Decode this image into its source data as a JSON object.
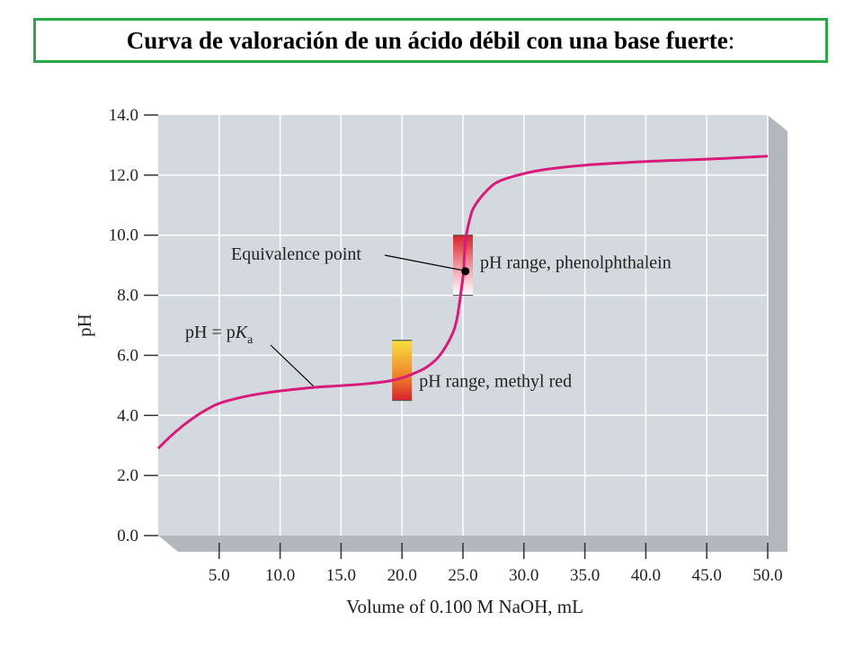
{
  "header": {
    "title": "Curva de valoración de un ácido débil con una base fuerte",
    "title_suffix": ":"
  },
  "chart_data": {
    "type": "line",
    "title": "",
    "xlabel": "Volume of 0.100 M NaOH, mL",
    "ylabel": "pH",
    "xlim": [
      0,
      50
    ],
    "ylim": [
      0,
      14
    ],
    "grid": true,
    "x_ticks": [
      "5.0",
      "10.0",
      "15.0",
      "20.0",
      "25.0",
      "30.0",
      "35.0",
      "40.0",
      "45.0",
      "50.0"
    ],
    "y_ticks": [
      "0.0",
      "2.0",
      "4.0",
      "6.0",
      "8.0",
      "10.0",
      "12.0",
      "14.0"
    ],
    "series": [
      {
        "color": "#d81b7a",
        "x": [
          0,
          1,
          2,
          3,
          4,
          5,
          7,
          9,
          11,
          13,
          15,
          17,
          19,
          20,
          21,
          22,
          23,
          24,
          24.5,
          24.9,
          25.05,
          25.2,
          25.6,
          26,
          27,
          28,
          30,
          32,
          35,
          40,
          45,
          50
        ],
        "y": [
          2.9,
          3.3,
          3.65,
          3.95,
          4.2,
          4.4,
          4.62,
          4.76,
          4.86,
          4.94,
          4.99,
          5.05,
          5.15,
          5.25,
          5.4,
          5.6,
          5.95,
          6.6,
          7.2,
          8.3,
          8.8,
          9.8,
          10.6,
          11.0,
          11.5,
          11.8,
          12.05,
          12.2,
          12.33,
          12.45,
          12.53,
          12.63
        ]
      }
    ],
    "indicator_bars": [
      {
        "label": "pH range, methyl red",
        "x": 20.0,
        "y_range": [
          4.5,
          6.5
        ],
        "colors": [
          "#d8232a",
          "#f08a2c",
          "#f8e040"
        ]
      },
      {
        "label": "pH range, phenolphthalein",
        "x": 25.0,
        "y_range": [
          8.0,
          10.0
        ],
        "colors": [
          "#ffffff",
          "#f2a0a8",
          "#d8232a"
        ]
      }
    ],
    "annotations": [
      {
        "text": "Equivalence point",
        "point": [
          25.2,
          8.8
        ]
      },
      {
        "text_main": "pH = p",
        "text_italic": "K",
        "text_sub": "a",
        "point": [
          12.5,
          4.95
        ]
      }
    ],
    "colors": {
      "plot_bg": "#d4d9df",
      "plot_shadow": "#b3b8bf",
      "grid": "#ffffff",
      "curve": "#d81b7a",
      "equivalence_dot": "#000000"
    }
  }
}
